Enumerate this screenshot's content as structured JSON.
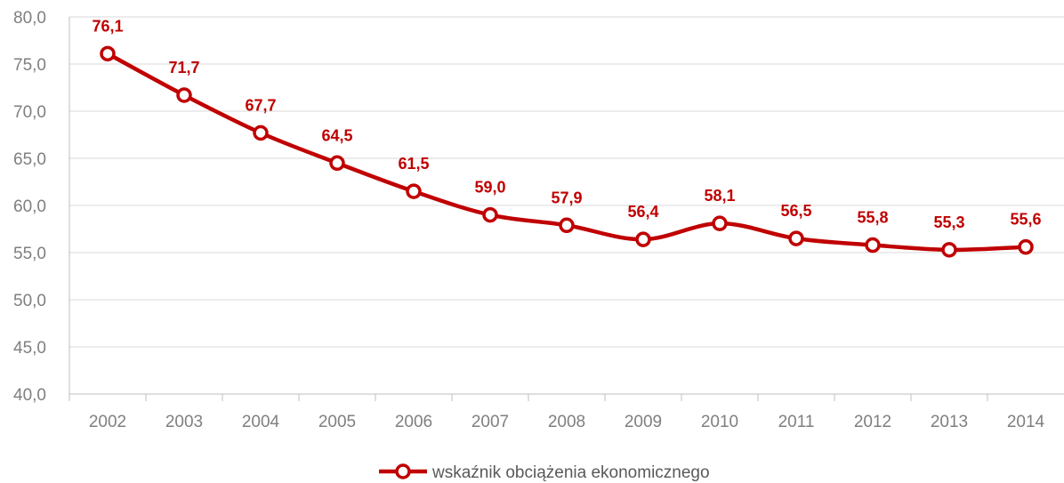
{
  "chart_data": {
    "type": "line",
    "title": "",
    "xlabel": "",
    "ylabel": "",
    "categories": [
      "2002",
      "2003",
      "2004",
      "2005",
      "2006",
      "2007",
      "2008",
      "2009",
      "2010",
      "2011",
      "2012",
      "2013",
      "2014"
    ],
    "series": [
      {
        "name": "wskaźnik obciążenia ekonomicznego",
        "values": [
          76.1,
          71.7,
          67.7,
          64.5,
          61.5,
          59.0,
          57.9,
          56.4,
          58.1,
          56.5,
          55.8,
          55.3,
          55.6
        ],
        "labels": [
          "76,1",
          "71,7",
          "67,7",
          "64,5",
          "61,5",
          "59,0",
          "57,9",
          "56,4",
          "58,1",
          "56,5",
          "55,8",
          "55,3",
          "55,6"
        ],
        "color": "#c00000",
        "marker": "hollow-circle",
        "smoothed": true
      }
    ],
    "ylim": [
      40,
      80
    ],
    "yticks": [
      "40,0",
      "45,0",
      "50,0",
      "55,0",
      "60,0",
      "65,0",
      "70,0",
      "75,0",
      "80,0"
    ],
    "ytick_values": [
      40,
      45,
      50,
      55,
      60,
      65,
      70,
      75,
      80
    ],
    "grid": "horizontal",
    "legend_position": "bottom",
    "colors": {
      "grid": "#d9d9d9",
      "axis": "#bfbfbf",
      "tick_text": "#7f7f7f",
      "legend_text": "#595959"
    }
  }
}
